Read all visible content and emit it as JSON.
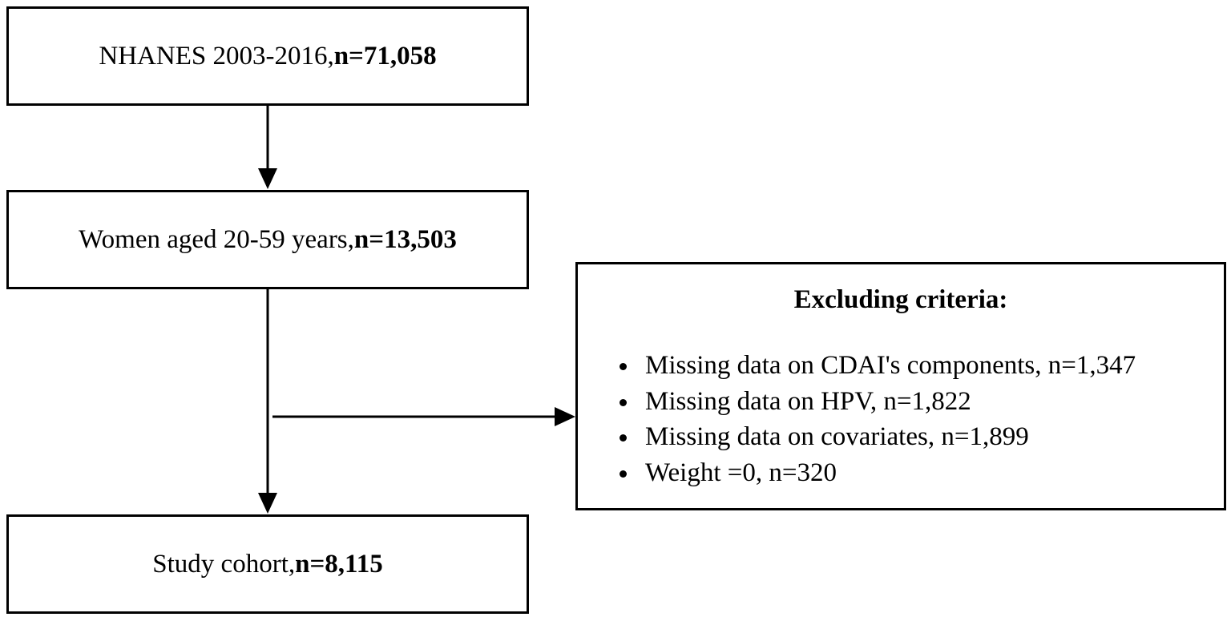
{
  "flowchart": {
    "step1": {
      "text": "NHANES 2003-2016, ",
      "count": "n=71,058"
    },
    "step2": {
      "text": "Women aged 20-59 years, ",
      "count": "n=13,503"
    },
    "step3": {
      "text": "Study cohort, ",
      "count": "n=8,115"
    },
    "exclusion": {
      "title": "Excluding criteria:",
      "items": [
        "Missing data on CDAI's components, n=1,347",
        "Missing data on HPV, n=1,822",
        "Missing data on covariates, n=1,899",
        "Weight =0, n=320"
      ]
    }
  },
  "colors": {
    "line": "#000000",
    "background": "#ffffff"
  }
}
